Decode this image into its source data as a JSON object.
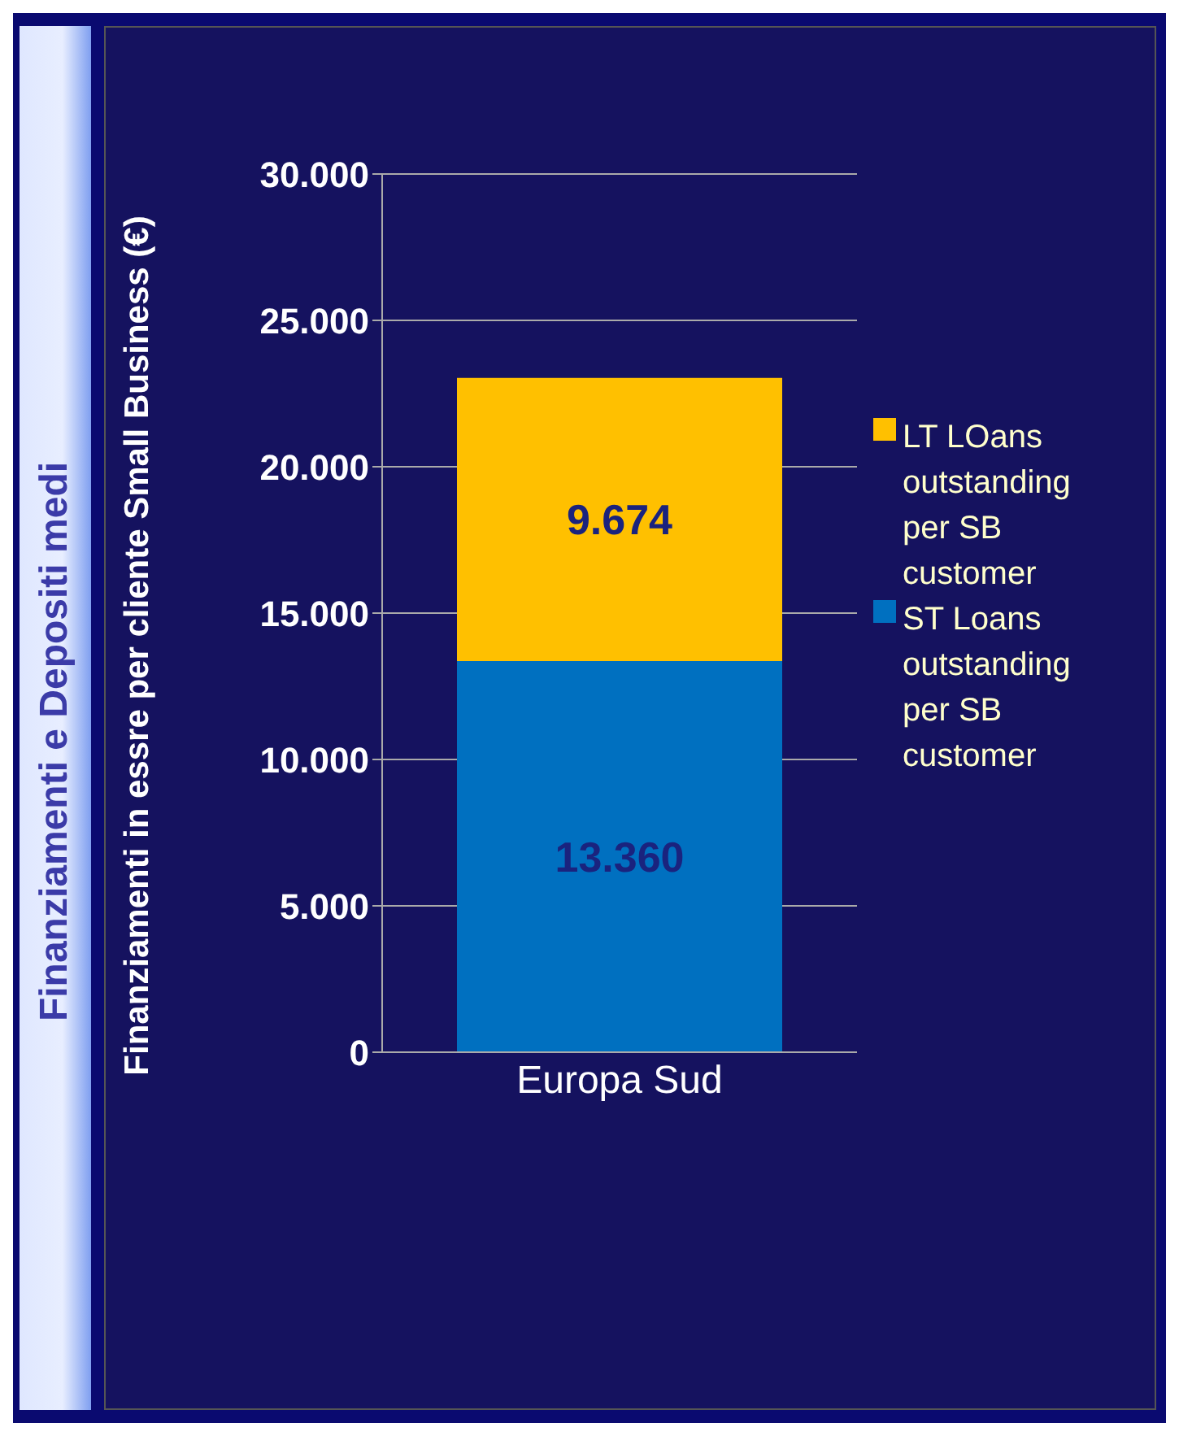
{
  "chart_data": {
    "type": "bar",
    "title": "Finanziamenti e Depositi medi",
    "ylabel": "Finanziamenti in essre per cliente Small Business (€)",
    "categories": [
      "Europa Sud"
    ],
    "stacked": true,
    "series": [
      {
        "name": "ST Loans outstanding per SB customer",
        "color": "#0070c0",
        "values": [
          13360
        ],
        "value_labels": [
          "13.360"
        ]
      },
      {
        "name": "LT LOans outstanding per SB customer",
        "color": "#ffc000",
        "values": [
          9674
        ],
        "value_labels": [
          "9.674"
        ]
      }
    ],
    "ylim": [
      0,
      30000
    ],
    "yticks": [
      {
        "value": 0,
        "label": "0"
      },
      {
        "value": 5000,
        "label": "5.000"
      },
      {
        "value": 10000,
        "label": "10.000"
      },
      {
        "value": 15000,
        "label": "15.000"
      },
      {
        "value": 20000,
        "label": "20.000"
      },
      {
        "value": 25000,
        "label": "25.000"
      },
      {
        "value": 30000,
        "label": "30.000"
      }
    ],
    "grid": "y",
    "legend": "right"
  }
}
